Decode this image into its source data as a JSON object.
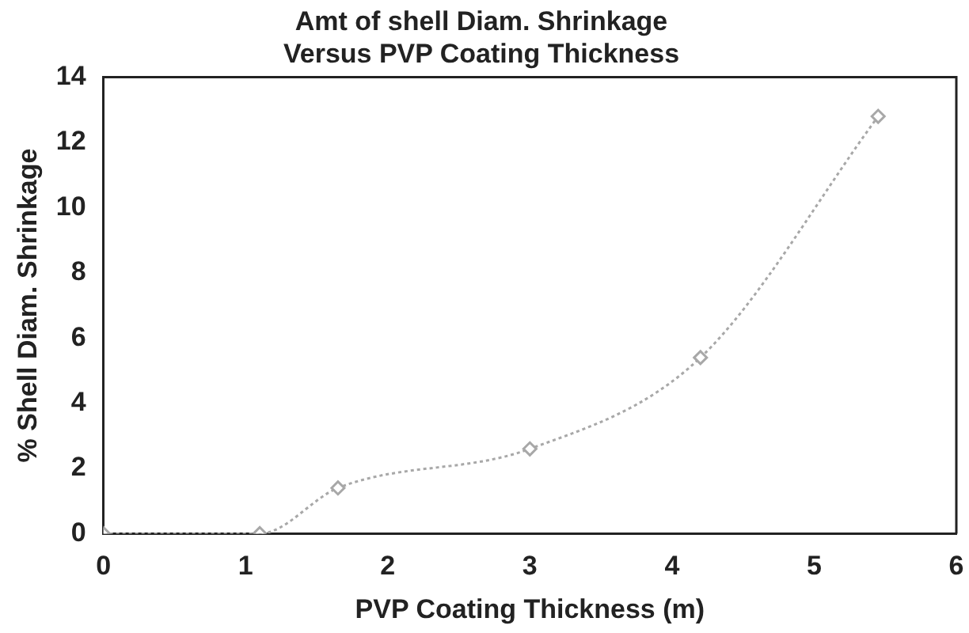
{
  "chart_data": {
    "type": "line",
    "title": [
      "Amt of shell Diam. Shrinkage",
      "Versus PVP Coating Thickness"
    ],
    "xlabel": "PVP Coating Thickness (m)",
    "ylabel": "% Shell Diam. Shrinkage",
    "x": [
      0,
      1.1,
      1.65,
      3.0,
      4.2,
      5.45
    ],
    "series": [
      {
        "color": "#a8a8a8",
        "values": [
          0,
          0,
          1.4,
          2.6,
          5.4,
          12.8
        ]
      }
    ],
    "xlim": [
      0,
      6
    ],
    "xticks": [
      0,
      1,
      2,
      3,
      4,
      5,
      6
    ],
    "ylim": [
      0,
      14
    ],
    "yticks": [
      0,
      2,
      4,
      6,
      8,
      10,
      12,
      14
    ],
    "grid": false,
    "legend": false,
    "marker": "diamond",
    "line_style": "dotted"
  }
}
